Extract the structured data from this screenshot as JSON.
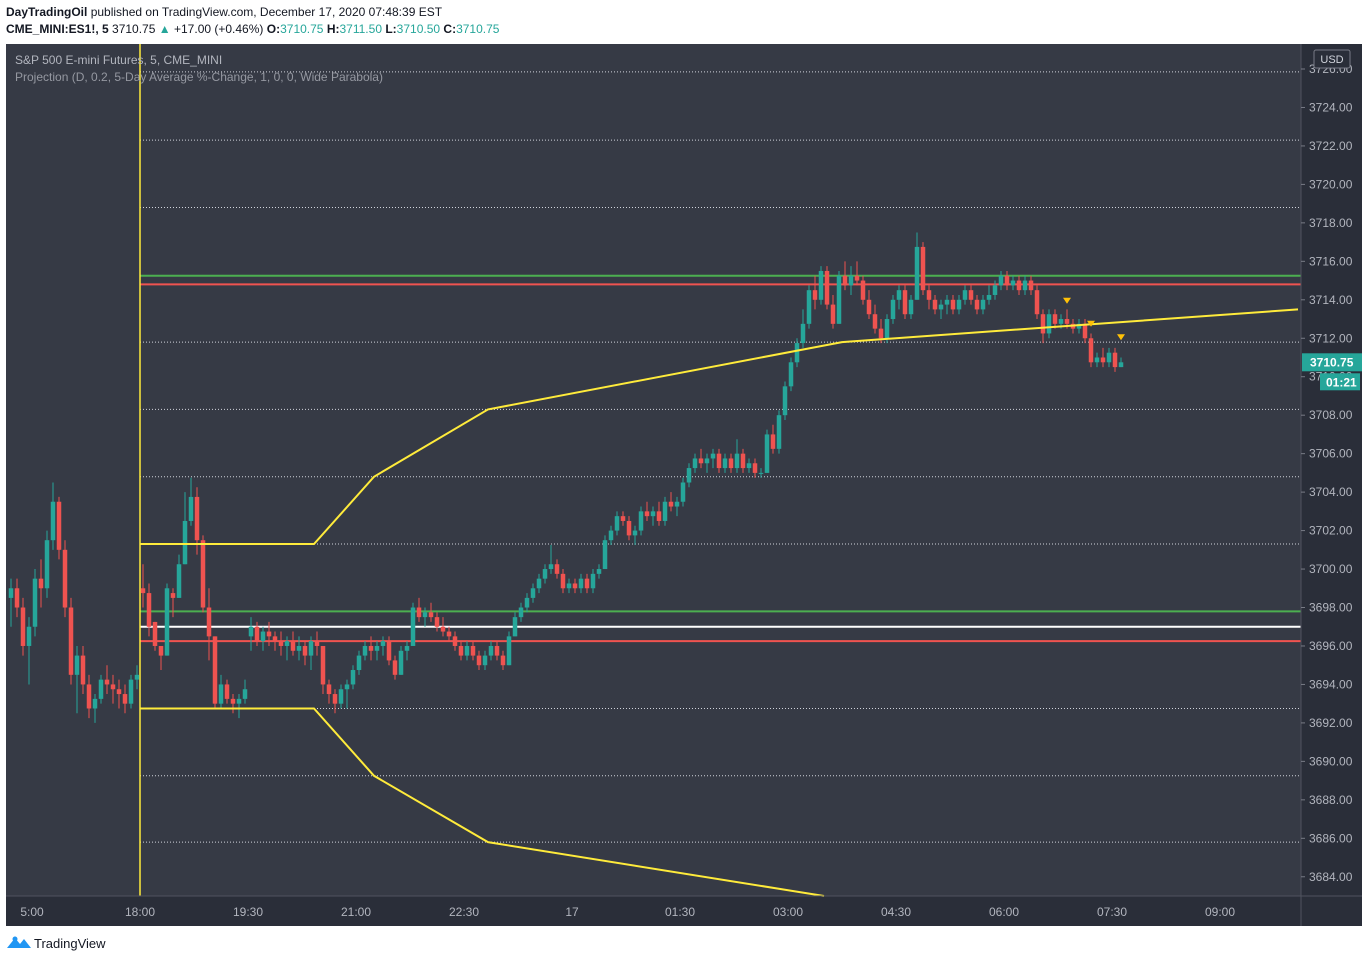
{
  "header": {
    "author": "DayTradingOil",
    "published_text": "published on TradingView.com, December 17, 2020 07:48:39 EST",
    "symbol": "CME_MINI:ES1!, 5",
    "last": "3710.75",
    "change": "+17.00 (+0.46%)",
    "o_label": "O:",
    "o": "3710.75",
    "h_label": "H:",
    "h": "3711.50",
    "l_label": "L:",
    "l": "3710.50",
    "c_label": "C:",
    "c": "3710.75"
  },
  "footer": {
    "brand": "TradingView",
    "logo_icon": "tradingview-logo-icon"
  },
  "chart_data": {
    "type": "candlestick",
    "title": "S&P 500 E-mini Futures, 5, CME_MINI",
    "indicator": "Projection (D, 0.2, 5-Day Average %-Change, 1, 0, 0, Wide Parabola)",
    "currency": "USD",
    "last_price": "3710.75",
    "countdown": "01:21",
    "ylim": [
      3683.0,
      3727.3
    ],
    "y_ticks": [
      "3684.00",
      "3686.00",
      "3688.00",
      "3690.00",
      "3692.00",
      "3694.00",
      "3696.00",
      "3698.00",
      "3700.00",
      "3702.00",
      "3704.00",
      "3706.00",
      "3708.00",
      "3710.00",
      "3712.00",
      "3714.00",
      "3716.00",
      "3718.00",
      "3720.00",
      "3722.00",
      "3724.00",
      "3726.00"
    ],
    "x_tick_labels": [
      "5:00",
      "18:00",
      "19:30",
      "21:00",
      "22:30",
      "17",
      "01:30",
      "03:00",
      "04:30",
      "06:00",
      "07:30",
      "09:00"
    ],
    "x_tick_index": [
      -18,
      0,
      18,
      36,
      54,
      72,
      90,
      108,
      126,
      144,
      162,
      180
    ],
    "session_start_index": 0,
    "bars_shown": 216,
    "lookback_bars": 22,
    "horizontal_levels": [
      {
        "price": 3715.25,
        "color": "#4caf50"
      },
      {
        "price": 3714.8,
        "color": "#f05350"
      },
      {
        "price": 3697.8,
        "color": "#4caf50"
      },
      {
        "price": 3697.0,
        "color": "#ffffff"
      },
      {
        "price": 3696.25,
        "color": "#f05350"
      }
    ],
    "dotted_levels": [
      3725.85,
      3722.3,
      3718.8,
      3711.8,
      3708.3,
      3704.8,
      3701.3,
      3692.75,
      3689.25,
      3685.8
    ],
    "projection_upper": [
      [
        0,
        3701.3
      ],
      [
        29,
        3701.3
      ],
      [
        39,
        3704.8
      ],
      [
        58,
        3708.3
      ],
      [
        117,
        3711.8
      ],
      [
        193,
        3713.5
      ]
    ],
    "projection_lower": [
      [
        0,
        3692.75
      ],
      [
        29,
        3692.75
      ],
      [
        39,
        3689.25
      ],
      [
        58,
        3685.8
      ],
      [
        114,
        3683.0
      ]
    ],
    "signal_markers": [
      {
        "index": 154,
        "price": 3713.9
      },
      {
        "index": 158,
        "price": 3712.7
      },
      {
        "index": 163,
        "price": 3712.0
      }
    ],
    "candles_ohlc": [
      [
        3699.0,
        3700.25,
        3698.0,
        3698.75
      ],
      [
        3698.75,
        3699.25,
        3696.5,
        3697.0
      ],
      [
        3697.25,
        3697.25,
        3695.75,
        3696.0
      ],
      [
        3696.0,
        3696.0,
        3694.75,
        3695.5
      ],
      [
        3695.5,
        3699.25,
        3695.5,
        3699.0
      ],
      [
        3698.75,
        3699.0,
        3697.5,
        3698.5
      ],
      [
        3698.5,
        3700.75,
        3698.5,
        3700.25
      ],
      [
        3700.25,
        3704.0,
        3700.25,
        3702.5
      ],
      [
        3702.5,
        3704.75,
        3702.25,
        3703.75
      ],
      [
        3703.75,
        3704.25,
        3700.75,
        3701.5
      ],
      [
        3701.5,
        3701.75,
        3697.75,
        3698.0
      ],
      [
        3698.0,
        3699.0,
        3695.25,
        3696.5
      ],
      [
        3696.5,
        3696.5,
        3692.75,
        3693.0
      ],
      [
        3693.0,
        3694.5,
        3692.75,
        3694.0
      ],
      [
        3694.0,
        3694.25,
        3693.0,
        3693.25
      ],
      [
        3693.25,
        3693.5,
        3692.5,
        3693.0
      ],
      [
        3693.0,
        3693.5,
        3692.25,
        3693.25
      ],
      [
        3693.25,
        3694.25,
        3693.0,
        3693.75
      ],
      [
        3696.5,
        3697.5,
        3695.75,
        3697.0
      ],
      [
        3697.0,
        3697.25,
        3696.0,
        3696.25
      ],
      [
        3696.25,
        3697.0,
        3695.75,
        3696.75
      ],
      [
        3696.75,
        3697.25,
        3696.0,
        3696.5
      ],
      [
        3696.5,
        3696.75,
        3695.75,
        3696.25
      ],
      [
        3696.25,
        3696.75,
        3695.5,
        3696.0
      ],
      [
        3696.0,
        3696.5,
        3695.25,
        3696.25
      ],
      [
        3696.25,
        3696.75,
        3695.5,
        3695.75
      ],
      [
        3695.75,
        3696.5,
        3695.25,
        3696.0
      ],
      [
        3696.0,
        3696.25,
        3695.0,
        3695.5
      ],
      [
        3695.5,
        3696.5,
        3694.75,
        3696.25
      ],
      [
        3696.25,
        3696.75,
        3695.5,
        3696.0
      ],
      [
        3696.0,
        3696.0,
        3693.5,
        3694.0
      ],
      [
        3694.0,
        3694.25,
        3693.0,
        3693.5
      ],
      [
        3693.5,
        3693.75,
        3692.5,
        3693.0
      ],
      [
        3693.0,
        3694.0,
        3692.75,
        3693.75
      ],
      [
        3693.75,
        3694.25,
        3692.75,
        3694.0
      ],
      [
        3694.0,
        3695.0,
        3693.75,
        3694.75
      ],
      [
        3694.75,
        3695.75,
        3694.5,
        3695.5
      ],
      [
        3695.5,
        3696.25,
        3695.25,
        3696.0
      ],
      [
        3696.0,
        3696.5,
        3695.25,
        3695.75
      ],
      [
        3695.75,
        3696.25,
        3695.25,
        3696.0
      ],
      [
        3696.0,
        3696.5,
        3695.5,
        3696.25
      ],
      [
        3696.25,
        3696.5,
        3695.0,
        3695.25
      ],
      [
        3695.25,
        3695.5,
        3694.25,
        3694.5
      ],
      [
        3694.5,
        3696.0,
        3694.5,
        3695.75
      ],
      [
        3695.75,
        3696.25,
        3695.25,
        3696.0
      ],
      [
        3696.0,
        3698.25,
        3696.0,
        3698.0
      ],
      [
        3698.0,
        3698.5,
        3697.25,
        3697.5
      ],
      [
        3697.5,
        3698.0,
        3697.0,
        3697.75
      ],
      [
        3697.75,
        3698.25,
        3697.25,
        3697.5
      ],
      [
        3697.5,
        3697.75,
        3696.75,
        3697.0
      ],
      [
        3697.0,
        3697.5,
        3696.5,
        3696.75
      ],
      [
        3696.75,
        3697.0,
        3696.25,
        3696.5
      ],
      [
        3696.5,
        3696.75,
        3695.75,
        3696.0
      ],
      [
        3696.0,
        3696.25,
        3695.25,
        3695.5
      ],
      [
        3695.5,
        3696.25,
        3695.25,
        3696.0
      ],
      [
        3696.0,
        3696.25,
        3695.25,
        3695.5
      ],
      [
        3695.5,
        3695.75,
        3694.75,
        3695.0
      ],
      [
        3695.0,
        3695.75,
        3694.75,
        3695.5
      ],
      [
        3695.5,
        3696.25,
        3695.25,
        3696.0
      ],
      [
        3696.0,
        3696.25,
        3695.25,
        3695.5
      ],
      [
        3695.5,
        3695.75,
        3694.75,
        3695.0
      ],
      [
        3695.0,
        3696.75,
        3695.0,
        3696.5
      ],
      [
        3696.5,
        3697.75,
        3696.5,
        3697.5
      ],
      [
        3697.5,
        3698.25,
        3697.25,
        3698.0
      ],
      [
        3698.0,
        3698.75,
        3697.75,
        3698.5
      ],
      [
        3698.5,
        3699.25,
        3698.25,
        3699.0
      ],
      [
        3699.0,
        3699.75,
        3698.75,
        3699.5
      ],
      [
        3699.5,
        3700.25,
        3699.25,
        3700.0
      ],
      [
        3700.0,
        3701.25,
        3699.75,
        3700.25
      ],
      [
        3700.25,
        3700.5,
        3699.5,
        3699.75
      ],
      [
        3699.75,
        3700.0,
        3698.75,
        3699.0
      ],
      [
        3699.0,
        3699.5,
        3698.75,
        3699.25
      ],
      [
        3699.25,
        3699.5,
        3698.75,
        3699.0
      ],
      [
        3699.0,
        3699.75,
        3698.75,
        3699.5
      ],
      [
        3699.5,
        3699.75,
        3698.75,
        3699.0
      ],
      [
        3699.0,
        3700.0,
        3698.75,
        3699.75
      ],
      [
        3699.75,
        3700.25,
        3699.5,
        3700.0
      ],
      [
        3700.0,
        3701.75,
        3700.0,
        3701.5
      ],
      [
        3701.5,
        3702.25,
        3701.25,
        3702.0
      ],
      [
        3702.0,
        3703.0,
        3701.75,
        3702.75
      ],
      [
        3702.75,
        3703.0,
        3702.25,
        3702.5
      ],
      [
        3702.5,
        3702.75,
        3701.5,
        3701.75
      ],
      [
        3701.75,
        3702.25,
        3701.25,
        3702.0
      ],
      [
        3702.0,
        3703.25,
        3701.75,
        3703.0
      ],
      [
        3703.0,
        3703.5,
        3702.5,
        3702.75
      ],
      [
        3702.75,
        3703.25,
        3702.25,
        3703.0
      ],
      [
        3703.0,
        3703.5,
        3702.25,
        3702.5
      ],
      [
        3702.5,
        3703.75,
        3702.25,
        3703.5
      ],
      [
        3703.5,
        3704.0,
        3703.0,
        3703.25
      ],
      [
        3703.25,
        3703.75,
        3702.75,
        3703.5
      ],
      [
        3703.5,
        3704.75,
        3703.25,
        3704.5
      ],
      [
        3704.5,
        3705.5,
        3704.25,
        3705.25
      ],
      [
        3705.25,
        3706.0,
        3705.0,
        3705.75
      ],
      [
        3705.75,
        3706.25,
        3705.25,
        3705.5
      ],
      [
        3705.5,
        3706.0,
        3705.0,
        3705.75
      ],
      [
        3705.75,
        3706.25,
        3705.25,
        3706.0
      ],
      [
        3706.0,
        3706.25,
        3705.0,
        3705.25
      ],
      [
        3705.25,
        3706.0,
        3705.0,
        3705.75
      ],
      [
        3705.75,
        3706.0,
        3705.0,
        3705.25
      ],
      [
        3705.25,
        3706.75,
        3705.0,
        3706.0
      ],
      [
        3706.0,
        3706.25,
        3705.0,
        3705.25
      ],
      [
        3705.25,
        3705.75,
        3705.0,
        3705.5
      ],
      [
        3705.5,
        3705.75,
        3704.75,
        3705.0
      ],
      [
        3705.0,
        3705.25,
        3704.75,
        3705.0
      ],
      [
        3705.0,
        3707.25,
        3705.0,
        3707.0
      ],
      [
        3707.0,
        3707.5,
        3706.0,
        3706.25
      ],
      [
        3706.25,
        3708.25,
        3706.0,
        3708.0
      ],
      [
        3708.0,
        3709.75,
        3707.75,
        3709.5
      ],
      [
        3709.5,
        3711.0,
        3709.25,
        3710.75
      ],
      [
        3710.75,
        3712.0,
        3710.5,
        3711.75
      ],
      [
        3711.75,
        3713.5,
        3711.5,
        3712.75
      ],
      [
        3712.75,
        3714.75,
        3712.5,
        3714.5
      ],
      [
        3714.5,
        3715.25,
        3713.5,
        3714.0
      ],
      [
        3714.0,
        3715.75,
        3713.75,
        3715.5
      ],
      [
        3715.5,
        3715.75,
        3713.5,
        3713.75
      ],
      [
        3713.75,
        3714.25,
        3712.5,
        3712.75
      ],
      [
        3712.75,
        3715.5,
        3712.75,
        3715.25
      ],
      [
        3715.25,
        3716.0,
        3714.5,
        3714.75
      ],
      [
        3714.75,
        3715.75,
        3714.25,
        3715.25
      ],
      [
        3715.25,
        3716.0,
        3714.75,
        3715.0
      ],
      [
        3715.0,
        3715.25,
        3713.75,
        3714.0
      ],
      [
        3714.0,
        3714.5,
        3713.0,
        3713.25
      ],
      [
        3713.25,
        3713.75,
        3712.25,
        3712.5
      ],
      [
        3712.5,
        3713.0,
        3711.75,
        3712.0
      ],
      [
        3712.0,
        3713.25,
        3711.75,
        3713.0
      ],
      [
        3713.0,
        3714.25,
        3712.75,
        3714.0
      ],
      [
        3714.0,
        3714.75,
        3713.5,
        3714.5
      ],
      [
        3714.5,
        3714.75,
        3713.0,
        3713.25
      ],
      [
        3713.25,
        3714.25,
        3713.0,
        3714.0
      ],
      [
        3714.0,
        3717.5,
        3714.0,
        3716.75
      ],
      [
        3716.75,
        3717.0,
        3714.25,
        3714.5
      ],
      [
        3714.5,
        3714.75,
        3713.5,
        3714.0
      ],
      [
        3714.0,
        3714.25,
        3713.25,
        3713.5
      ],
      [
        3713.5,
        3714.0,
        3713.0,
        3713.75
      ],
      [
        3713.75,
        3714.25,
        3713.25,
        3714.0
      ],
      [
        3714.0,
        3714.25,
        3713.25,
        3713.5
      ],
      [
        3713.5,
        3714.25,
        3713.25,
        3714.0
      ],
      [
        3714.0,
        3714.75,
        3713.75,
        3714.5
      ],
      [
        3714.5,
        3714.75,
        3713.75,
        3714.0
      ],
      [
        3714.0,
        3714.25,
        3713.25,
        3713.5
      ],
      [
        3713.5,
        3714.25,
        3713.25,
        3714.0
      ],
      [
        3714.0,
        3714.75,
        3713.75,
        3714.25
      ],
      [
        3714.25,
        3715.0,
        3714.0,
        3714.75
      ],
      [
        3714.75,
        3715.5,
        3714.5,
        3715.25
      ],
      [
        3715.25,
        3715.5,
        3714.5,
        3714.75
      ],
      [
        3714.75,
        3715.25,
        3714.5,
        3715.0
      ],
      [
        3715.0,
        3715.25,
        3714.25,
        3714.5
      ],
      [
        3714.5,
        3715.25,
        3714.25,
        3715.0
      ],
      [
        3715.0,
        3715.25,
        3714.25,
        3714.5
      ],
      [
        3714.5,
        3714.75,
        3713.0,
        3713.25
      ],
      [
        3713.25,
        3713.5,
        3711.75,
        3712.25
      ],
      [
        3712.25,
        3713.5,
        3712.0,
        3713.25
      ],
      [
        3713.25,
        3713.5,
        3712.5,
        3712.75
      ],
      [
        3712.75,
        3713.25,
        3712.5,
        3713.0
      ],
      [
        3713.0,
        3713.5,
        3712.5,
        3712.75
      ],
      [
        3712.75,
        3713.0,
        3712.25,
        3712.5
      ],
      [
        3712.5,
        3713.0,
        3712.25,
        3712.75
      ],
      [
        3712.75,
        3713.0,
        3711.75,
        3712.0
      ],
      [
        3712.0,
        3712.25,
        3710.5,
        3710.75
      ],
      [
        3710.75,
        3711.25,
        3710.5,
        3711.0
      ],
      [
        3711.0,
        3711.5,
        3710.5,
        3710.75
      ],
      [
        3710.75,
        3711.5,
        3710.5,
        3711.25
      ],
      [
        3711.25,
        3711.5,
        3710.25,
        3710.5
      ],
      [
        3710.5,
        3711.0,
        3710.5,
        3710.75
      ]
    ],
    "lookback_ohlc": [
      [
        3698.5,
        3699.5,
        3697.0,
        3699.0
      ],
      [
        3699.0,
        3699.5,
        3697.5,
        3698.0
      ],
      [
        3698.0,
        3698.5,
        3695.5,
        3696.0
      ],
      [
        3696.0,
        3697.5,
        3694.0,
        3697.0
      ],
      [
        3697.0,
        3700.0,
        3696.5,
        3699.5
      ],
      [
        3699.5,
        3700.5,
        3698.0,
        3699.0
      ],
      [
        3699.0,
        3702.0,
        3698.5,
        3701.5
      ],
      [
        3701.5,
        3704.5,
        3701.0,
        3703.5
      ],
      [
        3703.5,
        3703.75,
        3700.5,
        3701.0
      ],
      [
        3701.0,
        3701.5,
        3697.5,
        3698.0
      ],
      [
        3698.0,
        3698.5,
        3694.0,
        3694.5
      ],
      [
        3694.5,
        3696.0,
        3692.5,
        3695.5
      ],
      [
        3695.5,
        3696.0,
        3693.5,
        3694.0
      ],
      [
        3694.0,
        3694.5,
        3692.25,
        3692.75
      ],
      [
        3692.75,
        3693.5,
        3692.0,
        3693.25
      ],
      [
        3693.25,
        3694.5,
        3693.0,
        3694.25
      ],
      [
        3694.25,
        3695.0,
        3693.5,
        3694.0
      ],
      [
        3694.0,
        3694.5,
        3693.0,
        3693.75
      ],
      [
        3693.75,
        3694.25,
        3692.75,
        3693.5
      ],
      [
        3693.5,
        3694.0,
        3692.5,
        3693.0
      ],
      [
        3693.0,
        3694.5,
        3692.75,
        3694.25
      ],
      [
        3694.25,
        3695.0,
        3693.75,
        3694.5
      ]
    ]
  }
}
